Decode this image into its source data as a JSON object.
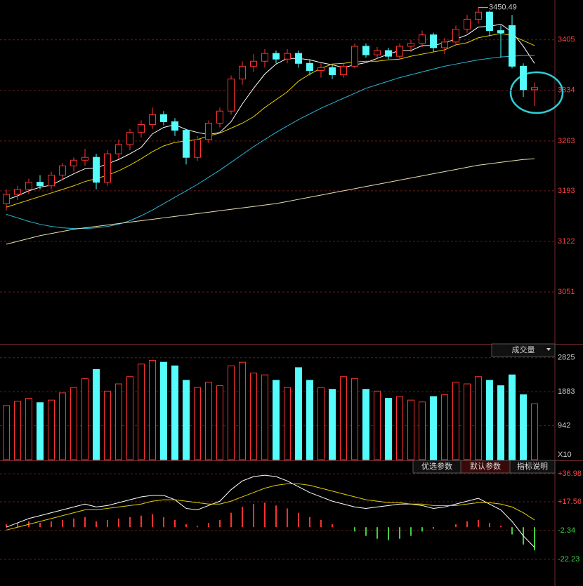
{
  "chart_data": [
    {
      "type": "candlestick",
      "open": [
        3175,
        3188,
        3195,
        3205,
        3200,
        3215,
        3228,
        3236,
        3240,
        3205,
        3245,
        3258,
        3275,
        3286,
        3300,
        3290,
        3278,
        3240,
        3265,
        3288,
        3305,
        3350,
        3368,
        3375,
        3386,
        3378,
        3386,
        3372,
        3362,
        3366,
        3356,
        3368,
        3396,
        3384,
        3390,
        3382,
        3396,
        3400,
        3412,
        3394,
        3402,
        3420,
        3434,
        3444,
        3418,
        3425,
        3368,
        3335
      ],
      "high": [
        3195,
        3200,
        3210,
        3215,
        3220,
        3232,
        3240,
        3252,
        3245,
        3250,
        3265,
        3280,
        3292,
        3310,
        3305,
        3295,
        3280,
        3270,
        3292,
        3310,
        3355,
        3375,
        3385,
        3392,
        3390,
        3392,
        3390,
        3378,
        3372,
        3370,
        3372,
        3400,
        3400,
        3395,
        3394,
        3400,
        3405,
        3418,
        3415,
        3408,
        3425,
        3440,
        3450.49,
        3446,
        3425,
        3440,
        3372,
        3345
      ],
      "low": [
        3165,
        3180,
        3188,
        3195,
        3195,
        3208,
        3220,
        3228,
        3195,
        3200,
        3238,
        3250,
        3268,
        3280,
        3285,
        3270,
        3230,
        3235,
        3260,
        3282,
        3300,
        3342,
        3360,
        3366,
        3372,
        3372,
        3366,
        3355,
        3352,
        3350,
        3352,
        3365,
        3380,
        3378,
        3378,
        3378,
        3388,
        3395,
        3388,
        3385,
        3398,
        3415,
        3428,
        3410,
        3380,
        3365,
        3325,
        3312
      ],
      "close": [
        3188,
        3195,
        3205,
        3200,
        3215,
        3228,
        3236,
        3240,
        3205,
        3245,
        3258,
        3275,
        3286,
        3300,
        3290,
        3278,
        3240,
        3265,
        3288,
        3305,
        3350,
        3368,
        3375,
        3386,
        3378,
        3386,
        3372,
        3362,
        3366,
        3356,
        3368,
        3396,
        3384,
        3390,
        3382,
        3396,
        3400,
        3412,
        3394,
        3402,
        3420,
        3434,
        3444,
        3418,
        3415,
        3368,
        3335,
        3338
      ],
      "up_color": "#ff3232",
      "down_color": "#54fcfc",
      "series": [
        {
          "color": "#ffffff",
          "values": [
            3180,
            3186,
            3193,
            3198,
            3201,
            3209,
            3217,
            3224,
            3225,
            3231,
            3237,
            3245,
            3254,
            3273,
            3282,
            3286,
            3279,
            3275,
            3272,
            3275,
            3290,
            3315,
            3337,
            3357,
            3371,
            3379,
            3379,
            3377,
            3373,
            3370,
            3366,
            3370,
            3373,
            3379,
            3385,
            3390,
            3390,
            3397,
            3397,
            3401,
            3406,
            3412,
            3423,
            3424,
            3427,
            3416,
            3396,
            3372
          ]
        },
        {
          "color": "#e6d000",
          "values": [
            3170,
            3175,
            3180,
            3185,
            3190,
            3195,
            3200,
            3206,
            3210,
            3215,
            3221,
            3229,
            3238,
            3248,
            3256,
            3261,
            3263,
            3265,
            3270,
            3274,
            3281,
            3288,
            3297,
            3310,
            3321,
            3332,
            3347,
            3357,
            3365,
            3371,
            3372,
            3374,
            3375,
            3375,
            3377,
            3378,
            3382,
            3385,
            3388,
            3391,
            3398,
            3401,
            3408,
            3411,
            3414,
            3411,
            3404,
            3397
          ]
        },
        {
          "color": "#2ab8d8",
          "values": [
            3160,
            3155,
            3150,
            3146,
            3143,
            3141,
            3140,
            3140,
            3141,
            3143,
            3146,
            3151,
            3158,
            3166,
            3175,
            3184,
            3193,
            3202,
            3212,
            3222,
            3233,
            3244,
            3255,
            3265,
            3275,
            3284,
            3293,
            3301,
            3309,
            3316,
            3323,
            3330,
            3337,
            3342,
            3347,
            3352,
            3356,
            3360,
            3364,
            3368,
            3371,
            3374,
            3377,
            3379,
            3381,
            3382,
            3383,
            3383
          ]
        },
        {
          "color": "#e8e0b0",
          "values": [
            3118,
            3122,
            3126,
            3130,
            3133,
            3136,
            3139,
            3141,
            3143,
            3145,
            3147,
            3149,
            3151,
            3153,
            3155,
            3157,
            3159,
            3161,
            3163,
            3165,
            3167,
            3169,
            3171,
            3173,
            3175,
            3178,
            3181,
            3184,
            3187,
            3190,
            3193,
            3196,
            3199,
            3202,
            3205,
            3208,
            3211,
            3214,
            3217,
            3220,
            3223,
            3226,
            3229,
            3231,
            3233,
            3235,
            3237,
            3238
          ]
        }
      ],
      "annotation": "3450.49",
      "ylim": [
        2978,
        3461
      ],
      "yticks": [
        3051,
        3122,
        3193,
        3263,
        3334,
        3405
      ],
      "grid": true
    },
    {
      "type": "bar",
      "title": "成交量",
      "unit": "X10",
      "values": [
        1500,
        1620,
        1700,
        1580,
        1650,
        1850,
        2000,
        2250,
        2500,
        1900,
        2100,
        2300,
        2650,
        2750,
        2700,
        2600,
        2200,
        2000,
        2150,
        2050,
        2600,
        2700,
        2400,
        2350,
        2200,
        2000,
        2550,
        2200,
        2000,
        1950,
        2300,
        2250,
        1950,
        1900,
        1700,
        1750,
        1650,
        1600,
        1750,
        1800,
        2150,
        2100,
        2300,
        2200,
        2050,
        2350,
        1800,
        1550
      ],
      "ylim": [
        0,
        3170
      ],
      "yticks": [
        942,
        1883,
        2825
      ]
    },
    {
      "type": "macd",
      "values": [
        2,
        3,
        4,
        3,
        4,
        5,
        6,
        7,
        4,
        5,
        6,
        7,
        8,
        9,
        7,
        5,
        2,
        1,
        3,
        5,
        10,
        14,
        16,
        17,
        15,
        13,
        10,
        7,
        5,
        2,
        0,
        -3,
        -6,
        -8,
        -9,
        -8,
        -6,
        -3,
        -1,
        0,
        2,
        4,
        5,
        3,
        1,
        -5,
        -12,
        -16
      ],
      "series": [
        {
          "color": "#ffffff",
          "values": [
            0,
            3,
            6,
            8,
            10,
            12,
            14,
            16,
            14,
            15,
            17,
            19,
            21,
            22,
            22,
            19,
            13,
            12,
            15,
            18,
            26,
            32,
            35,
            36,
            35,
            32,
            28,
            24,
            21,
            18,
            16,
            14,
            13,
            14,
            15,
            16,
            16,
            15,
            13,
            14,
            16,
            18,
            20,
            16,
            12,
            4,
            -6,
            -14
          ]
        },
        {
          "color": "#e6d000",
          "values": [
            -2,
            0,
            2,
            4,
            6,
            8,
            10,
            12,
            12,
            13,
            14,
            15,
            16,
            18,
            19,
            19,
            18,
            17,
            16,
            16,
            18,
            21,
            24,
            27,
            29,
            30,
            30,
            29,
            27,
            25,
            23,
            21,
            19,
            18,
            17,
            17,
            16,
            16,
            15,
            15,
            15,
            16,
            17,
            17,
            16,
            14,
            10,
            5
          ]
        }
      ],
      "buttons": [
        "优选参数",
        "默认参数",
        "指标说明"
      ],
      "ylim": [
        -40.7,
        44.3
      ],
      "yticks": [
        {
          "value": 36.98,
          "label": "+36.98"
        },
        {
          "value": 17.56,
          "label": "+17.56"
        },
        -2.34,
        -22.23
      ]
    }
  ]
}
